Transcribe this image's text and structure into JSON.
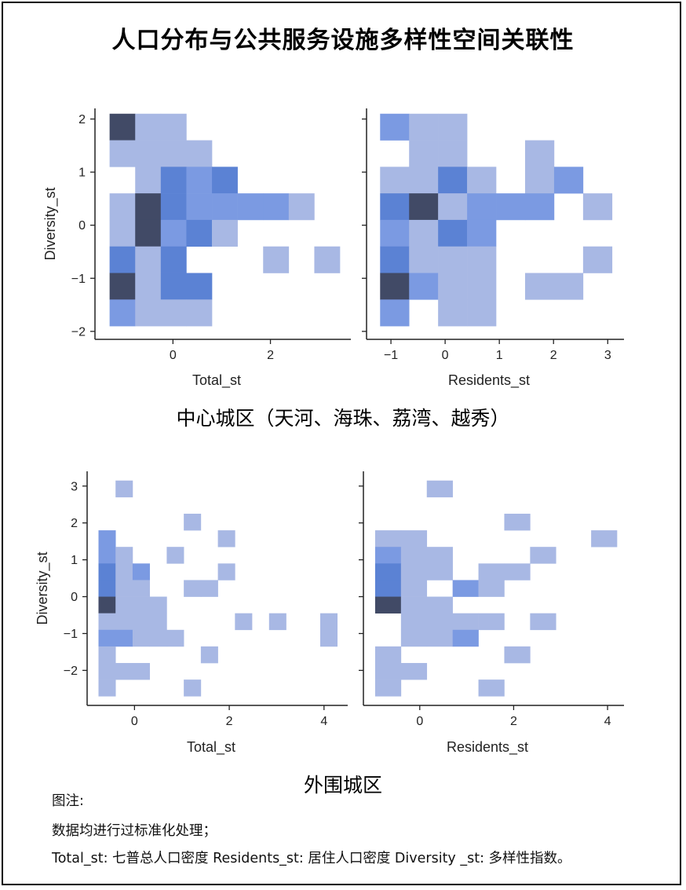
{
  "title": "人口分布与公共服务设施多样性空间关联性",
  "sections": [
    {
      "title": "中心城区（天河、海珠、荔湾、越秀）"
    },
    {
      "title": "外围城区"
    }
  ],
  "notes": [
    "图注:",
    "数据均进行过标准化处理；",
    "Total_st: 七普总人口密度   Residents_st: 居住人口密度   Diversity _st: 多样性指数。"
  ],
  "colors": {
    "low": "#a8b8e4",
    "mid": "#7b9ae2",
    "high": "#5b82d4",
    "max": "#414a66"
  },
  "chart_data": [
    {
      "type": "heatmap",
      "group": "中心城区",
      "xlabel": "Total_st",
      "ylabel": "Diversity_st",
      "xlim": [
        -1.6,
        3.65
      ],
      "ylim": [
        -2.15,
        2.2
      ],
      "xticks": [
        0,
        2
      ],
      "yticks": [
        2,
        1,
        0,
        -1,
        -2
      ],
      "bin_w": 0.525,
      "bin_h": 0.5,
      "cells": [
        {
          "x0": -1.3,
          "y0": 1.6,
          "level": 4
        },
        {
          "x0": -0.775,
          "y0": 1.6,
          "level": 1
        },
        {
          "x0": -0.25,
          "y0": 1.6,
          "level": 1
        },
        {
          "x0": -1.3,
          "y0": 1.1,
          "level": 1
        },
        {
          "x0": -0.775,
          "y0": 1.1,
          "level": 1
        },
        {
          "x0": -0.25,
          "y0": 1.1,
          "level": 1
        },
        {
          "x0": 0.275,
          "y0": 1.1,
          "level": 1
        },
        {
          "x0": -0.775,
          "y0": 0.6,
          "level": 1
        },
        {
          "x0": -0.25,
          "y0": 0.6,
          "level": 3
        },
        {
          "x0": 0.275,
          "y0": 0.6,
          "level": 2
        },
        {
          "x0": 0.8,
          "y0": 0.6,
          "level": 3
        },
        {
          "x0": -1.3,
          "y0": 0.1,
          "level": 1
        },
        {
          "x0": -0.775,
          "y0": 0.1,
          "level": 4
        },
        {
          "x0": -0.25,
          "y0": 0.1,
          "level": 3
        },
        {
          "x0": 0.275,
          "y0": 0.1,
          "level": 2
        },
        {
          "x0": 0.8,
          "y0": 0.1,
          "level": 2
        },
        {
          "x0": 1.325,
          "y0": 0.1,
          "level": 2
        },
        {
          "x0": 1.85,
          "y0": 0.1,
          "level": 2
        },
        {
          "x0": 2.375,
          "y0": 0.1,
          "level": 1
        },
        {
          "x0": -1.3,
          "y0": -0.4,
          "level": 1
        },
        {
          "x0": -0.775,
          "y0": -0.4,
          "level": 4
        },
        {
          "x0": -0.25,
          "y0": -0.4,
          "level": 2
        },
        {
          "x0": 0.275,
          "y0": -0.4,
          "level": 3
        },
        {
          "x0": 0.8,
          "y0": -0.4,
          "level": 1
        },
        {
          "x0": -1.3,
          "y0": -0.9,
          "level": 3
        },
        {
          "x0": -0.775,
          "y0": -0.9,
          "level": 1
        },
        {
          "x0": -0.25,
          "y0": -0.9,
          "level": 3
        },
        {
          "x0": 1.85,
          "y0": -0.9,
          "level": 1
        },
        {
          "x0": 2.9,
          "y0": -0.9,
          "level": 1
        },
        {
          "x0": -1.3,
          "y0": -1.4,
          "level": 4
        },
        {
          "x0": -0.775,
          "y0": -1.4,
          "level": 1
        },
        {
          "x0": -0.25,
          "y0": -1.4,
          "level": 3
        },
        {
          "x0": 0.275,
          "y0": -1.4,
          "level": 3
        },
        {
          "x0": -1.3,
          "y0": -1.9,
          "level": 2
        },
        {
          "x0": -0.775,
          "y0": -1.9,
          "level": 1
        },
        {
          "x0": -0.25,
          "y0": -1.9,
          "level": 1
        },
        {
          "x0": 0.275,
          "y0": -1.9,
          "level": 1
        }
      ]
    },
    {
      "type": "heatmap",
      "group": "中心城区",
      "xlabel": "Residents_st",
      "ylabel": "",
      "xlim": [
        -1.45,
        3.3
      ],
      "ylim": [
        -2.15,
        2.2
      ],
      "xticks": [
        -1,
        0,
        1,
        2,
        3
      ],
      "yticks": [
        2,
        1,
        0,
        -1,
        -2
      ],
      "bin_w": 0.535,
      "bin_h": 0.5,
      "cells": [
        {
          "x0": -1.2,
          "y0": 1.6,
          "level": 2
        },
        {
          "x0": -0.665,
          "y0": 1.6,
          "level": 1
        },
        {
          "x0": -0.13,
          "y0": 1.6,
          "level": 1
        },
        {
          "x0": -0.665,
          "y0": 1.1,
          "level": 1
        },
        {
          "x0": -0.13,
          "y0": 1.1,
          "level": 1
        },
        {
          "x0": 1.475,
          "y0": 1.1,
          "level": 1
        },
        {
          "x0": -1.2,
          "y0": 0.6,
          "level": 1
        },
        {
          "x0": -0.665,
          "y0": 0.6,
          "level": 1
        },
        {
          "x0": -0.13,
          "y0": 0.6,
          "level": 3
        },
        {
          "x0": 0.405,
          "y0": 0.6,
          "level": 1
        },
        {
          "x0": 1.475,
          "y0": 0.6,
          "level": 1
        },
        {
          "x0": 2.01,
          "y0": 0.6,
          "level": 2
        },
        {
          "x0": -1.2,
          "y0": 0.1,
          "level": 3
        },
        {
          "x0": -0.665,
          "y0": 0.1,
          "level": 4
        },
        {
          "x0": -0.13,
          "y0": 0.1,
          "level": 1
        },
        {
          "x0": 0.405,
          "y0": 0.1,
          "level": 2
        },
        {
          "x0": 0.94,
          "y0": 0.1,
          "level": 2
        },
        {
          "x0": 1.475,
          "y0": 0.1,
          "level": 2
        },
        {
          "x0": 2.545,
          "y0": 0.1,
          "level": 1
        },
        {
          "x0": -1.2,
          "y0": -0.4,
          "level": 2
        },
        {
          "x0": -0.665,
          "y0": -0.4,
          "level": 1
        },
        {
          "x0": -0.13,
          "y0": -0.4,
          "level": 3
        },
        {
          "x0": 0.405,
          "y0": -0.4,
          "level": 2
        },
        {
          "x0": -1.2,
          "y0": -0.9,
          "level": 3
        },
        {
          "x0": -0.665,
          "y0": -0.9,
          "level": 1
        },
        {
          "x0": -0.13,
          "y0": -0.9,
          "level": 1
        },
        {
          "x0": 0.405,
          "y0": -0.9,
          "level": 1
        },
        {
          "x0": 2.545,
          "y0": -0.9,
          "level": 1
        },
        {
          "x0": -1.2,
          "y0": -1.4,
          "level": 4
        },
        {
          "x0": -0.665,
          "y0": -1.4,
          "level": 2
        },
        {
          "x0": -0.13,
          "y0": -1.4,
          "level": 1
        },
        {
          "x0": 0.405,
          "y0": -1.4,
          "level": 1
        },
        {
          "x0": 1.475,
          "y0": -1.4,
          "level": 1
        },
        {
          "x0": 2.01,
          "y0": -1.4,
          "level": 1
        },
        {
          "x0": -1.2,
          "y0": -1.9,
          "level": 2
        },
        {
          "x0": -0.13,
          "y0": -1.9,
          "level": 1
        },
        {
          "x0": 0.405,
          "y0": -1.9,
          "level": 1
        }
      ]
    },
    {
      "type": "heatmap",
      "group": "外围城区",
      "xlabel": "Total_st",
      "ylabel": "Diversity_st",
      "xlim": [
        -1.0,
        4.5
      ],
      "ylim": [
        -2.95,
        3.4
      ],
      "xticks": [
        0,
        2,
        4
      ],
      "yticks": [
        3,
        2,
        1,
        0,
        -1,
        -2
      ],
      "bin_w": 0.36,
      "bin_h": 0.45,
      "cells": [
        {
          "x0": -0.4,
          "y0": 2.7,
          "level": 1
        },
        {
          "x0": 1.04,
          "y0": 1.8,
          "level": 1
        },
        {
          "x0": -0.76,
          "y0": 1.35,
          "level": 2
        },
        {
          "x0": 1.76,
          "y0": 1.35,
          "level": 1
        },
        {
          "x0": -0.76,
          "y0": 0.9,
          "level": 2
        },
        {
          "x0": -0.4,
          "y0": 0.9,
          "level": 1
        },
        {
          "x0": 0.68,
          "y0": 0.9,
          "level": 1
        },
        {
          "x0": -0.76,
          "y0": 0.45,
          "level": 3
        },
        {
          "x0": -0.4,
          "y0": 0.45,
          "level": 1
        },
        {
          "x0": -0.04,
          "y0": 0.45,
          "level": 2
        },
        {
          "x0": 1.76,
          "y0": 0.45,
          "level": 1
        },
        {
          "x0": -0.76,
          "y0": 0.0,
          "level": 3
        },
        {
          "x0": -0.4,
          "y0": 0.0,
          "level": 1
        },
        {
          "x0": -0.04,
          "y0": 0.0,
          "level": 1
        },
        {
          "x0": 1.04,
          "y0": 0.0,
          "level": 1
        },
        {
          "x0": 1.4,
          "y0": 0.0,
          "level": 1
        },
        {
          "x0": -0.76,
          "y0": -0.45,
          "level": 4
        },
        {
          "x0": -0.4,
          "y0": -0.45,
          "level": 1
        },
        {
          "x0": -0.04,
          "y0": -0.45,
          "level": 1
        },
        {
          "x0": 0.32,
          "y0": -0.45,
          "level": 1
        },
        {
          "x0": -0.76,
          "y0": -0.9,
          "level": 1
        },
        {
          "x0": -0.4,
          "y0": -0.9,
          "level": 1
        },
        {
          "x0": -0.04,
          "y0": -0.9,
          "level": 1
        },
        {
          "x0": 0.32,
          "y0": -0.9,
          "level": 1
        },
        {
          "x0": 2.12,
          "y0": -0.9,
          "level": 1
        },
        {
          "x0": 2.84,
          "y0": -0.9,
          "level": 1
        },
        {
          "x0": 3.92,
          "y0": -0.9,
          "level": 1
        },
        {
          "x0": -0.76,
          "y0": -1.35,
          "level": 2
        },
        {
          "x0": -0.4,
          "y0": -1.35,
          "level": 2
        },
        {
          "x0": -0.04,
          "y0": -1.35,
          "level": 1
        },
        {
          "x0": 0.32,
          "y0": -1.35,
          "level": 1
        },
        {
          "x0": 0.68,
          "y0": -1.35,
          "level": 1
        },
        {
          "x0": 3.92,
          "y0": -1.35,
          "level": 1
        },
        {
          "x0": -0.76,
          "y0": -1.8,
          "level": 1
        },
        {
          "x0": 1.4,
          "y0": -1.8,
          "level": 1
        },
        {
          "x0": -0.76,
          "y0": -2.25,
          "level": 1
        },
        {
          "x0": -0.4,
          "y0": -2.25,
          "level": 1
        },
        {
          "x0": -0.04,
          "y0": -2.25,
          "level": 1
        },
        {
          "x0": -0.76,
          "y0": -2.7,
          "level": 1
        },
        {
          "x0": 1.04,
          "y0": -2.7,
          "level": 1
        }
      ]
    },
    {
      "type": "heatmap",
      "group": "外围城区",
      "xlabel": "Residents_st",
      "ylabel": "",
      "xlim": [
        -1.2,
        4.35
      ],
      "ylim": [
        -2.95,
        3.4
      ],
      "xticks": [
        0,
        2,
        4
      ],
      "yticks": [
        3,
        2,
        1,
        0,
        -1,
        -2
      ],
      "bin_w": 0.55,
      "bin_h": 0.45,
      "cells": [
        {
          "x0": 0.15,
          "y0": 2.7,
          "level": 1
        },
        {
          "x0": 1.8,
          "y0": 1.8,
          "level": 1
        },
        {
          "x0": -0.95,
          "y0": 1.35,
          "level": 1
        },
        {
          "x0": -0.4,
          "y0": 1.35,
          "level": 1
        },
        {
          "x0": 3.65,
          "y0": 1.35,
          "level": 1
        },
        {
          "x0": -0.95,
          "y0": 0.9,
          "level": 2
        },
        {
          "x0": -0.4,
          "y0": 0.9,
          "level": 1
        },
        {
          "x0": 0.15,
          "y0": 0.9,
          "level": 1
        },
        {
          "x0": 2.35,
          "y0": 0.9,
          "level": 1
        },
        {
          "x0": -0.95,
          "y0": 0.45,
          "level": 3
        },
        {
          "x0": -0.4,
          "y0": 0.45,
          "level": 1
        },
        {
          "x0": 0.15,
          "y0": 0.45,
          "level": 1
        },
        {
          "x0": 1.25,
          "y0": 0.45,
          "level": 1
        },
        {
          "x0": 1.8,
          "y0": 0.45,
          "level": 1
        },
        {
          "x0": -0.95,
          "y0": 0.0,
          "level": 3
        },
        {
          "x0": -0.4,
          "y0": 0.0,
          "level": 1
        },
        {
          "x0": 0.7,
          "y0": 0.0,
          "level": 2
        },
        {
          "x0": 1.25,
          "y0": 0.0,
          "level": 1
        },
        {
          "x0": -0.95,
          "y0": -0.45,
          "level": 4
        },
        {
          "x0": -0.4,
          "y0": -0.45,
          "level": 1
        },
        {
          "x0": 0.15,
          "y0": -0.45,
          "level": 1
        },
        {
          "x0": -0.4,
          "y0": -0.9,
          "level": 1
        },
        {
          "x0": 0.15,
          "y0": -0.9,
          "level": 1
        },
        {
          "x0": 0.7,
          "y0": -0.9,
          "level": 1
        },
        {
          "x0": 1.25,
          "y0": -0.9,
          "level": 1
        },
        {
          "x0": 2.35,
          "y0": -0.9,
          "level": 1
        },
        {
          "x0": -0.4,
          "y0": -1.35,
          "level": 1
        },
        {
          "x0": 0.15,
          "y0": -1.35,
          "level": 1
        },
        {
          "x0": 0.7,
          "y0": -1.35,
          "level": 2
        },
        {
          "x0": -0.95,
          "y0": -1.8,
          "level": 1
        },
        {
          "x0": 1.8,
          "y0": -1.8,
          "level": 1
        },
        {
          "x0": -0.95,
          "y0": -2.25,
          "level": 1
        },
        {
          "x0": -0.4,
          "y0": -2.25,
          "level": 1
        },
        {
          "x0": -0.95,
          "y0": -2.7,
          "level": 1
        },
        {
          "x0": 1.25,
          "y0": -2.7,
          "level": 1
        }
      ]
    }
  ]
}
